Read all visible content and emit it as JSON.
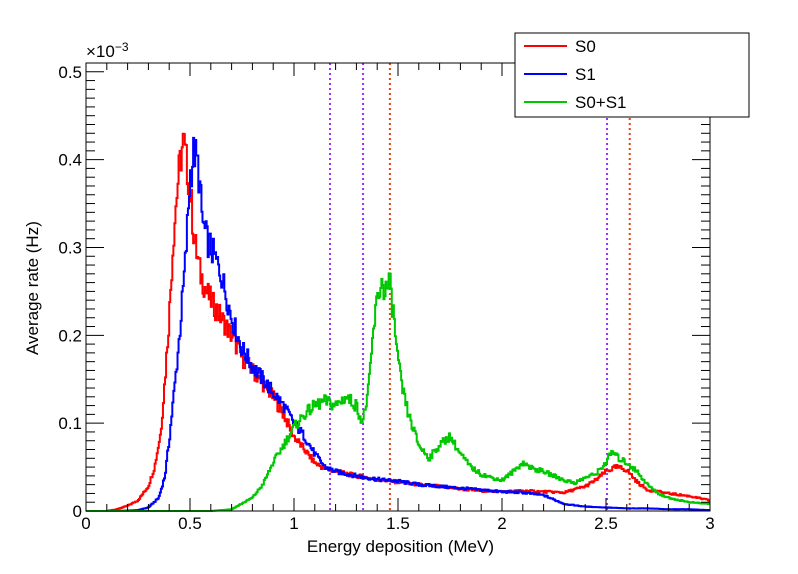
{
  "chart_data": {
    "type": "line",
    "title": "",
    "xlabel": "Energy deposition (MeV)",
    "ylabel": "Average rate (Hz)",
    "y_multiplier_label": "×10",
    "y_multiplier_exp": "−3",
    "xlim": [
      0,
      3
    ],
    "ylim": [
      0,
      0.51
    ],
    "x_ticks": [
      0,
      0.5,
      1,
      1.5,
      2,
      2.5,
      3
    ],
    "x_tick_labels": [
      "0",
      "0.5",
      "1",
      "1.5",
      "2",
      "2.5",
      "3"
    ],
    "y_ticks": [
      0,
      0.1,
      0.2,
      0.3,
      0.4,
      0.5
    ],
    "y_tick_labels": [
      "0",
      "0.1",
      "0.2",
      "0.3",
      "0.4",
      "0.5"
    ],
    "grid": false,
    "legend_position": "top-right",
    "vertical_markers": [
      {
        "x": 1.173,
        "color": "#9b30ff"
      },
      {
        "x": 1.332,
        "color": "#9b30ff"
      },
      {
        "x": 2.505,
        "color": "#9b30ff"
      },
      {
        "x": 1.461,
        "color": "#e8400c"
      },
      {
        "x": 2.614,
        "color": "#e8400c"
      }
    ],
    "series": [
      {
        "name": "S0",
        "color": "#ff0000",
        "x": [
          0,
          0.1,
          0.15,
          0.2,
          0.25,
          0.3,
          0.33,
          0.36,
          0.38,
          0.4,
          0.42,
          0.44,
          0.46,
          0.47,
          0.48,
          0.5,
          0.52,
          0.55,
          0.58,
          0.6,
          0.65,
          0.7,
          0.75,
          0.8,
          0.85,
          0.9,
          0.95,
          1.0,
          1.05,
          1.1,
          1.15,
          1.2,
          1.3,
          1.4,
          1.5,
          1.6,
          1.7,
          1.8,
          1.9,
          2.0,
          2.1,
          2.2,
          2.3,
          2.4,
          2.45,
          2.5,
          2.55,
          2.6,
          2.65,
          2.7,
          2.8,
          2.9,
          3.0
        ],
        "y": [
          0,
          0.0,
          0.002,
          0.006,
          0.012,
          0.028,
          0.05,
          0.09,
          0.15,
          0.22,
          0.31,
          0.37,
          0.41,
          0.42,
          0.4,
          0.37,
          0.31,
          0.27,
          0.25,
          0.24,
          0.22,
          0.2,
          0.175,
          0.16,
          0.145,
          0.13,
          0.11,
          0.085,
          0.07,
          0.055,
          0.048,
          0.045,
          0.04,
          0.036,
          0.033,
          0.03,
          0.028,
          0.025,
          0.023,
          0.022,
          0.023,
          0.022,
          0.021,
          0.028,
          0.035,
          0.045,
          0.05,
          0.047,
          0.033,
          0.024,
          0.02,
          0.017,
          0.012
        ]
      },
      {
        "name": "S1",
        "color": "#0000ff",
        "x": [
          0,
          0.15,
          0.25,
          0.3,
          0.35,
          0.38,
          0.4,
          0.43,
          0.45,
          0.48,
          0.5,
          0.52,
          0.54,
          0.56,
          0.58,
          0.6,
          0.65,
          0.7,
          0.75,
          0.8,
          0.85,
          0.9,
          0.95,
          1.0,
          1.05,
          1.1,
          1.15,
          1.2,
          1.3,
          1.4,
          1.5,
          1.6,
          1.7,
          1.8,
          1.9,
          2.0,
          2.1,
          2.2,
          2.3,
          2.4,
          2.5,
          2.6,
          2.7,
          2.8,
          2.9,
          3.0
        ],
        "y": [
          0,
          0.0,
          0.001,
          0.004,
          0.015,
          0.04,
          0.08,
          0.15,
          0.2,
          0.29,
          0.38,
          0.41,
          0.39,
          0.33,
          0.31,
          0.3,
          0.27,
          0.22,
          0.185,
          0.165,
          0.15,
          0.135,
          0.12,
          0.1,
          0.085,
          0.065,
          0.05,
          0.045,
          0.04,
          0.036,
          0.034,
          0.03,
          0.028,
          0.026,
          0.024,
          0.022,
          0.021,
          0.018,
          0.008,
          0.005,
          0.004,
          0.003,
          0.003,
          0.002,
          0.002,
          0.001
        ]
      },
      {
        "name": "S0+S1",
        "color": "#00c800",
        "x": [
          0,
          0.6,
          0.7,
          0.8,
          0.85,
          0.9,
          0.95,
          1.0,
          1.05,
          1.1,
          1.15,
          1.2,
          1.25,
          1.3,
          1.33,
          1.36,
          1.38,
          1.4,
          1.42,
          1.44,
          1.46,
          1.48,
          1.5,
          1.52,
          1.55,
          1.6,
          1.65,
          1.7,
          1.75,
          1.8,
          1.85,
          1.9,
          1.95,
          2.0,
          2.05,
          2.1,
          2.15,
          2.2,
          2.25,
          2.3,
          2.35,
          2.4,
          2.45,
          2.5,
          2.53,
          2.56,
          2.6,
          2.65,
          2.7,
          2.75,
          2.8,
          2.9,
          3.0
        ],
        "y": [
          0,
          0.0,
          0.002,
          0.015,
          0.03,
          0.055,
          0.075,
          0.095,
          0.11,
          0.12,
          0.125,
          0.12,
          0.13,
          0.12,
          0.1,
          0.14,
          0.2,
          0.24,
          0.26,
          0.25,
          0.26,
          0.22,
          0.17,
          0.14,
          0.11,
          0.075,
          0.06,
          0.075,
          0.085,
          0.065,
          0.05,
          0.042,
          0.038,
          0.035,
          0.044,
          0.055,
          0.048,
          0.045,
          0.04,
          0.035,
          0.032,
          0.038,
          0.042,
          0.055,
          0.068,
          0.06,
          0.055,
          0.045,
          0.03,
          0.02,
          0.015,
          0.01,
          0.008
        ]
      }
    ]
  }
}
